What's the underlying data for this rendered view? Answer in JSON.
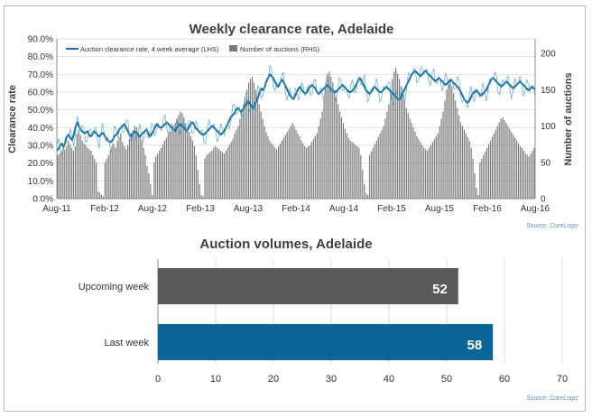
{
  "chart_data": [
    {
      "type": "line+bar",
      "title": "Weekly clearance rate, Adelaide",
      "ylabel": "Clearance rate",
      "y2label": "Number of auctions",
      "source": "Source: CoreLogic",
      "xaxis_ticks": [
        "Aug-11",
        "Feb-12",
        "Aug-12",
        "Feb-13",
        "Aug-13",
        "Feb-14",
        "Aug-14",
        "Feb-15",
        "Aug-15",
        "Feb-16",
        "Aug-16"
      ],
      "yaxis_ticks": [
        "0.0%",
        "10.0%",
        "20.0%",
        "30.0%",
        "40.0%",
        "50.0%",
        "60.0%",
        "70.0%",
        "80.0%",
        "90.0%"
      ],
      "y2axis_ticks": [
        "0",
        "50",
        "100",
        "150",
        "200"
      ],
      "ylim": [
        0,
        0.9
      ],
      "y2lim": [
        0,
        220
      ],
      "legend_position": "top-left",
      "series": [
        {
          "name": "Auction clearance rate, 4 week average (LHS)",
          "kind": "line",
          "color": "#1a6e9a",
          "values": [
            0.27,
            0.28,
            0.3,
            0.31,
            0.29,
            0.32,
            0.35,
            0.36,
            0.34,
            0.33,
            0.36,
            0.4,
            0.43,
            0.41,
            0.39,
            0.38,
            0.37,
            0.37,
            0.38,
            0.36,
            0.35,
            0.36,
            0.38,
            0.37,
            0.36,
            0.35,
            0.36,
            0.37,
            0.36,
            0.34,
            0.33,
            0.32,
            0.32,
            0.33,
            0.35,
            0.36,
            0.37,
            0.39,
            0.4,
            0.41,
            0.42,
            0.4,
            0.38,
            0.36,
            0.35,
            0.37,
            0.38,
            0.37,
            0.36,
            0.35,
            0.36,
            0.37,
            0.38,
            0.39,
            0.37,
            0.35,
            0.36,
            0.38,
            0.4,
            0.42,
            0.41,
            0.4,
            0.4,
            0.41,
            0.42,
            0.43,
            0.42,
            0.41,
            0.4,
            0.39,
            0.38,
            0.4,
            0.41,
            0.42,
            0.41,
            0.4,
            0.39,
            0.38,
            0.4,
            0.42,
            0.43,
            0.42,
            0.4,
            0.39,
            0.38,
            0.37,
            0.36,
            0.36,
            0.37,
            0.38,
            0.39,
            0.4,
            0.41,
            0.4,
            0.39,
            0.38,
            0.37,
            0.36,
            0.37,
            0.38,
            0.4,
            0.42,
            0.44,
            0.46,
            0.47,
            0.48,
            0.5,
            0.51,
            0.5,
            0.49,
            0.5,
            0.52,
            0.53,
            0.55,
            0.54,
            0.52,
            0.51,
            0.53,
            0.55,
            0.57,
            0.6,
            0.62,
            0.61,
            0.63,
            0.66,
            0.68,
            0.7,
            0.69,
            0.68,
            0.66,
            0.64,
            0.63,
            0.65,
            0.67,
            0.66,
            0.64,
            0.62,
            0.6,
            0.58,
            0.57,
            0.56,
            0.58,
            0.6,
            0.62,
            0.63,
            0.61,
            0.6,
            0.59,
            0.6,
            0.62,
            0.63,
            0.64,
            0.63,
            0.62,
            0.6,
            0.59,
            0.6,
            0.61,
            0.62,
            0.63,
            0.64,
            0.63,
            0.62,
            0.61,
            0.6,
            0.6,
            0.61,
            0.62,
            0.63,
            0.64,
            0.63,
            0.62,
            0.61,
            0.6,
            0.6,
            0.61,
            0.62,
            0.64,
            0.66,
            0.68,
            0.67,
            0.65,
            0.63,
            0.61,
            0.6,
            0.59,
            0.6,
            0.62,
            0.63,
            0.62,
            0.61,
            0.6,
            0.6,
            0.61,
            0.62,
            0.63,
            0.62,
            0.61,
            0.6,
            0.59,
            0.58,
            0.57,
            0.56,
            0.56,
            0.58,
            0.6,
            0.62,
            0.64,
            0.66,
            0.68,
            0.7,
            0.71,
            0.72,
            0.71,
            0.7,
            0.69,
            0.7,
            0.71,
            0.72,
            0.71,
            0.7,
            0.69,
            0.68,
            0.67,
            0.66,
            0.67,
            0.68,
            0.67,
            0.66,
            0.65,
            0.64,
            0.65,
            0.66,
            0.67,
            0.66,
            0.65,
            0.64,
            0.63,
            0.62,
            0.6,
            0.58,
            0.56,
            0.55,
            0.54,
            0.55,
            0.57,
            0.59,
            0.6,
            0.61,
            0.6,
            0.59,
            0.58,
            0.59,
            0.6,
            0.61,
            0.63,
            0.65,
            0.67,
            0.68,
            0.67,
            0.66,
            0.65,
            0.64,
            0.63,
            0.64,
            0.65,
            0.66,
            0.65,
            0.64,
            0.63,
            0.62,
            0.63,
            0.64,
            0.65,
            0.66,
            0.65,
            0.64,
            0.63,
            0.62,
            0.61,
            0.62,
            0.63,
            0.62,
            0.62
          ]
        },
        {
          "name": "Number of auctions (RHS)",
          "kind": "bar",
          "color": "#7a7a7a",
          "values": [
            60,
            62,
            65,
            70,
            68,
            72,
            80,
            75,
            70,
            66,
            72,
            90,
            95,
            88,
            80,
            76,
            74,
            70,
            68,
            66,
            60,
            55,
            50,
            10,
            8,
            5,
            3,
            50,
            55,
            60,
            66,
            72,
            75,
            70,
            80,
            85,
            90,
            78,
            72,
            68,
            74,
            82,
            90,
            94,
            100,
            98,
            92,
            86,
            80,
            70,
            60,
            45,
            35,
            20,
            5,
            50,
            58,
            62,
            66,
            70,
            75,
            80,
            84,
            88,
            92,
            96,
            100,
            104,
            110,
            115,
            120,
            118,
            112,
            104,
            98,
            92,
            86,
            80,
            72,
            60,
            40,
            20,
            5,
            3,
            55,
            60,
            62,
            64,
            66,
            70,
            72,
            70,
            68,
            66,
            64,
            62,
            66,
            70,
            74,
            78,
            82,
            90,
            95,
            100,
            110,
            120,
            130,
            140,
            150,
            160,
            165,
            168,
            160,
            150,
            140,
            130,
            120,
            110,
            100,
            92,
            86,
            80,
            76,
            74,
            70,
            68,
            72,
            76,
            80,
            84,
            88,
            92,
            96,
            100,
            104,
            100,
            95,
            90,
            86,
            80,
            76,
            72,
            70,
            72,
            74,
            78,
            82,
            86,
            90,
            100,
            110,
            120,
            140,
            160,
            170,
            175,
            168,
            160,
            150,
            140,
            130,
            120,
            112,
            104,
            96,
            90,
            84,
            80,
            78,
            76,
            74,
            72,
            70,
            60,
            40,
            20,
            8,
            5,
            60,
            65,
            70,
            75,
            80,
            85,
            90,
            95,
            100,
            110,
            120,
            130,
            150,
            165,
            175,
            180,
            172,
            165,
            155,
            145,
            135,
            125,
            118,
            110,
            104,
            98,
            92,
            86,
            82,
            78,
            74,
            70,
            68,
            66,
            70,
            74,
            78,
            82,
            86,
            90,
            100,
            110,
            120,
            135,
            150,
            160,
            165,
            155,
            145,
            135,
            125,
            115,
            105,
            100,
            95,
            90,
            85,
            80,
            70,
            55,
            35,
            15,
            5,
            50,
            55,
            60,
            65,
            70,
            75,
            80,
            85,
            90,
            95,
            100,
            105,
            110,
            112,
            108,
            104,
            100,
            96,
            92,
            88,
            84,
            80,
            76,
            72,
            70,
            66,
            62,
            60,
            58,
            62,
            66,
            70
          ]
        }
      ]
    },
    {
      "type": "bar",
      "orientation": "horizontal",
      "title": "Auction volumes, Adelaide",
      "source": "Source: CoreLogic",
      "categories": [
        "Upcoming week",
        "Last week"
      ],
      "values": [
        52,
        58
      ],
      "colors": [
        "#595959",
        "#0b6596"
      ],
      "xaxis_ticks": [
        "0",
        "10",
        "20",
        "30",
        "40",
        "50",
        "60",
        "70"
      ],
      "xlim": [
        0,
        70
      ]
    }
  ]
}
